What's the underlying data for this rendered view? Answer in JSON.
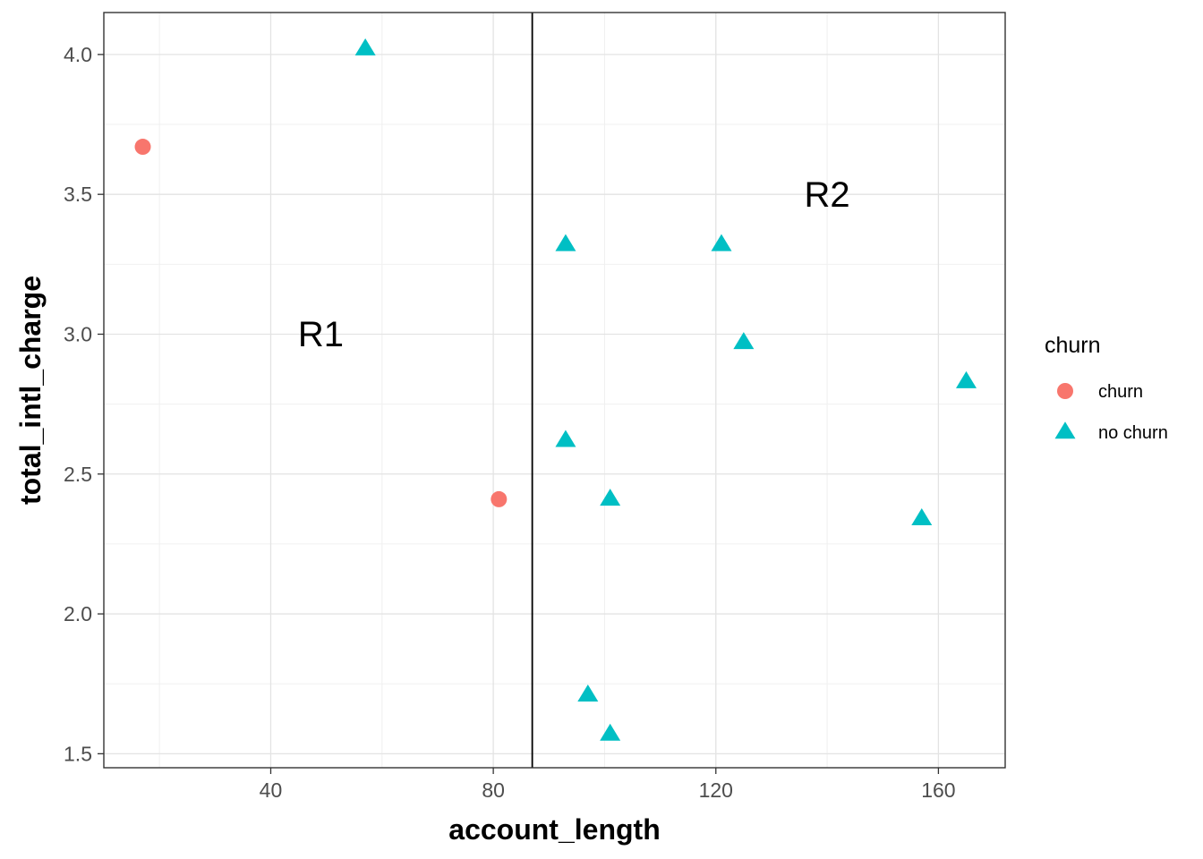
{
  "chart_data": {
    "type": "scatter",
    "xlabel": "account_length",
    "ylabel": "total_intl_charge",
    "xlim": [
      10,
      172
    ],
    "ylim": [
      1.45,
      4.15
    ],
    "xticks": [
      40,
      80,
      120,
      160
    ],
    "xtick_labels": [
      "40",
      "80",
      "120",
      "160"
    ],
    "yticks": [
      1.5,
      2.0,
      2.5,
      3.0,
      3.5,
      4.0
    ],
    "ytick_labels": [
      "1.5",
      "2.0",
      "2.5",
      "3.0",
      "3.5",
      "4.0"
    ],
    "grid": true,
    "vertical_line": {
      "x": 87
    },
    "annotations": [
      {
        "text": "R1",
        "x": 49,
        "y": 2.99
      },
      {
        "text": "R2",
        "x": 140,
        "y": 3.49
      }
    ],
    "legend": {
      "title": "churn",
      "placement": "right",
      "entries": [
        {
          "label": "churn",
          "shape": "circle",
          "color": "#F8766D"
        },
        {
          "label": "no churn",
          "shape": "triangle",
          "color": "#00BFC4"
        }
      ]
    },
    "series": [
      {
        "name": "churn",
        "shape": "circle",
        "color": "#F8766D",
        "points": [
          {
            "x": 17,
            "y": 3.67
          },
          {
            "x": 81,
            "y": 2.41
          }
        ]
      },
      {
        "name": "no churn",
        "shape": "triangle",
        "color": "#00BFC4",
        "points": [
          {
            "x": 57,
            "y": 4.02
          },
          {
            "x": 93,
            "y": 3.32
          },
          {
            "x": 121,
            "y": 3.32
          },
          {
            "x": 125,
            "y": 2.97
          },
          {
            "x": 165,
            "y": 2.83
          },
          {
            "x": 93,
            "y": 2.62
          },
          {
            "x": 101,
            "y": 2.41
          },
          {
            "x": 157,
            "y": 2.34
          },
          {
            "x": 97,
            "y": 1.71
          },
          {
            "x": 101,
            "y": 1.57
          }
        ]
      }
    ]
  }
}
